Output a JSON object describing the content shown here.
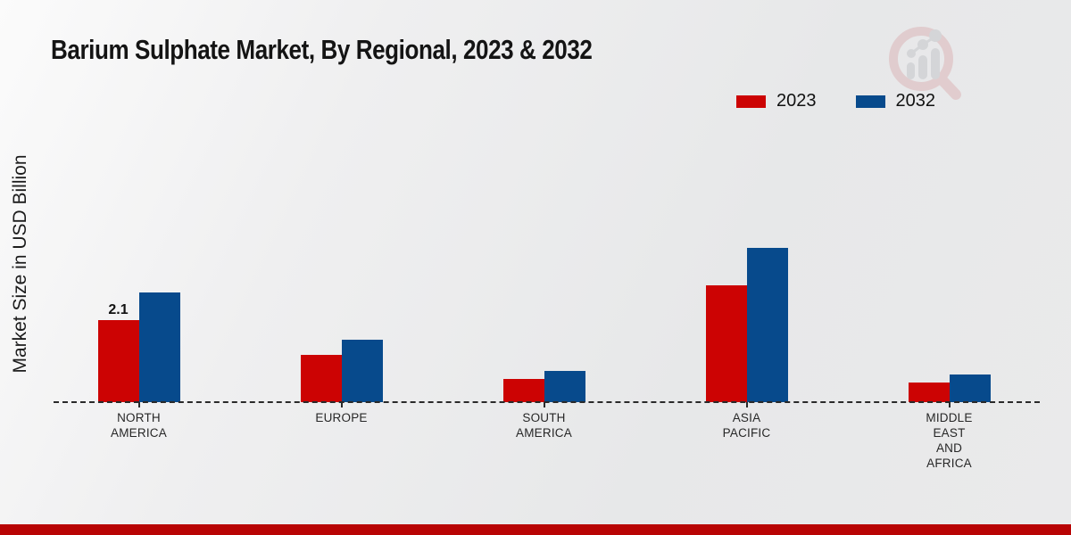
{
  "title": "Barium Sulphate Market, By Regional, 2023 & 2032",
  "footer_band_color": "#b80404",
  "watermark": "magnifier-bar-chart-logo",
  "chart_data": {
    "type": "bar",
    "title": "Barium Sulphate Market, By Regional, 2023 & 2032",
    "xlabel": "",
    "ylabel": "Market Size in USD Billion",
    "categories": [
      "NORTH AMERICA",
      "EUROPE",
      "SOUTH AMERICA",
      "ASIA PACIFIC",
      "MIDDLE EAST AND AFRICA"
    ],
    "category_lines": [
      [
        "NORTH",
        "AMERICA"
      ],
      [
        "EUROPE"
      ],
      [
        "SOUTH",
        "AMERICA"
      ],
      [
        "ASIA",
        "PACIFIC"
      ],
      [
        "MIDDLE",
        "EAST",
        "AND",
        "AFRICA"
      ]
    ],
    "series": [
      {
        "name": "2023",
        "color": "#cc0303",
        "values": [
          2.1,
          1.2,
          0.6,
          3.0,
          0.5
        ]
      },
      {
        "name": "2032",
        "color": "#074a8c",
        "values": [
          2.8,
          1.6,
          0.8,
          3.95,
          0.7
        ]
      }
    ],
    "data_labels": [
      {
        "series": "2023",
        "category": "NORTH AMERICA",
        "text": "2.1"
      }
    ],
    "unit": "USD Billion",
    "legend_position": "top-right",
    "grid": false,
    "baseline_style": "dashed",
    "ylim": [
      0,
      4.5
    ]
  }
}
